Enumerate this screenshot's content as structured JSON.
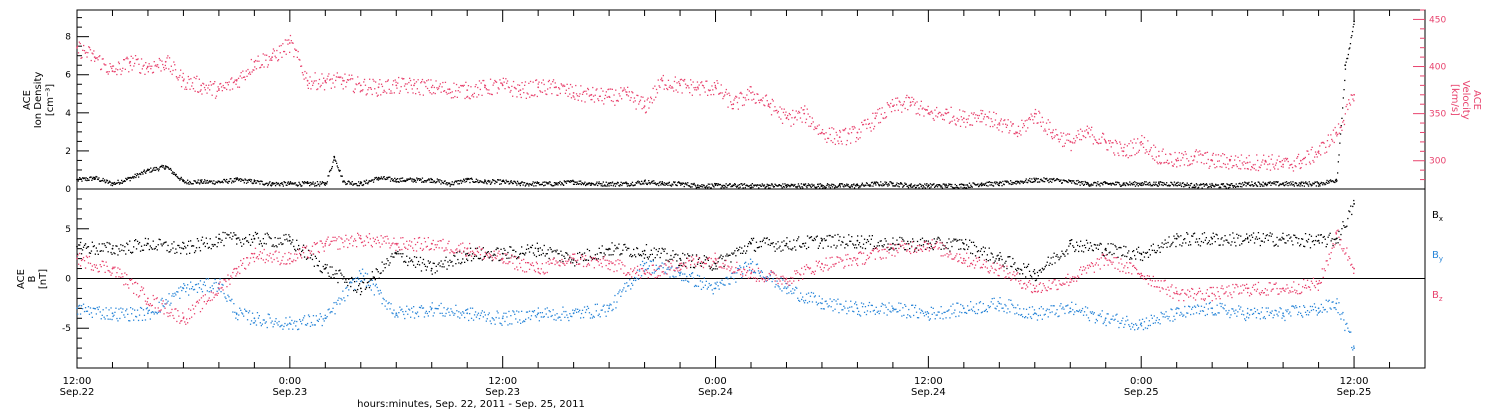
{
  "colors": {
    "black": "#000000",
    "pink": "#e8436e",
    "blue": "#2a86d8"
  },
  "x_axis": {
    "title": "hours:minutes, Sep. 22, 2011 - Sep. 25, 2011",
    "range_hours": [
      0,
      76
    ],
    "tick_times": [
      "12:00",
      "0:00",
      "12:00",
      "0:00",
      "12:00",
      "0:00",
      "12:00"
    ],
    "tick_dates": [
      "Sep.22",
      "Sep.23",
      "Sep.23",
      "Sep.24",
      "Sep.24",
      "Sep.25",
      "Sep.25"
    ],
    "tick_hours": [
      0,
      12,
      24,
      36,
      48,
      60,
      72
    ]
  },
  "chart_data": [
    {
      "type": "scatter",
      "panel": "top",
      "ylabel": "ACE Ion Density [cm^-3]",
      "ylabel_line1": "ACE",
      "ylabel_line2": "Ion Density",
      "ylabel_line3": "[cm⁻³]",
      "ylim": [
        0,
        9.4
      ],
      "yticks": [
        "0",
        "2",
        "4",
        "6",
        "8"
      ],
      "ytick_values": [
        0,
        2,
        4,
        6,
        8
      ],
      "right_axis": {
        "ylabel": "ACE Velocity [km/s]",
        "ylabel_line1": "ACE",
        "ylabel_line2": "Velocity",
        "ylabel_line3": "[km/s]",
        "ylim": [
          270,
          460
        ],
        "yticks": [
          "300",
          "350",
          "400",
          "450"
        ],
        "ytick_values": [
          300,
          350,
          400,
          450
        ]
      },
      "series": [
        {
          "axis": "left",
          "color": "#000000",
          "x": [
            0,
            1,
            2,
            3,
            4,
            5,
            6,
            7,
            8,
            9,
            10,
            11,
            12,
            13,
            14,
            14.5,
            15,
            16,
            17,
            18,
            19,
            20,
            21,
            22,
            23,
            24,
            25,
            26,
            27,
            28,
            29,
            30,
            31,
            32,
            33,
            34,
            35,
            36,
            37,
            38,
            39,
            40,
            41,
            42,
            43,
            44,
            45,
            46,
            47,
            48,
            49,
            50,
            51,
            52,
            53,
            54,
            55,
            56,
            57,
            58,
            59,
            60,
            61,
            62,
            63,
            64,
            65,
            66,
            67,
            68,
            69,
            70,
            71,
            71.5,
            72
          ],
          "values": [
            0.5,
            0.6,
            0.3,
            0.6,
            1.0,
            1.2,
            0.4,
            0.4,
            0.4,
            0.5,
            0.4,
            0.3,
            0.3,
            0.3,
            0.3,
            1.7,
            0.4,
            0.3,
            0.6,
            0.5,
            0.5,
            0.5,
            0.3,
            0.5,
            0.4,
            0.4,
            0.3,
            0.3,
            0.3,
            0.4,
            0.3,
            0.3,
            0.3,
            0.4,
            0.3,
            0.3,
            0.2,
            0.2,
            0.2,
            0.2,
            0.2,
            0.2,
            0.2,
            0.2,
            0.2,
            0.2,
            0.3,
            0.3,
            0.2,
            0.2,
            0.2,
            0.2,
            0.3,
            0.3,
            0.4,
            0.5,
            0.5,
            0.4,
            0.3,
            0.3,
            0.3,
            0.3,
            0.3,
            0.3,
            0.2,
            0.2,
            0.2,
            0.3,
            0.3,
            0.3,
            0.3,
            0.3,
            0.5,
            6.5,
            8.8
          ]
        },
        {
          "axis": "right",
          "color": "#e8436e",
          "x": [
            0,
            1,
            2,
            3,
            4,
            5,
            6,
            7,
            8,
            9,
            10,
            11,
            12,
            13,
            14,
            15,
            16,
            17,
            18,
            19,
            20,
            21,
            22,
            23,
            24,
            25,
            26,
            27,
            28,
            29,
            30,
            31,
            32,
            33,
            34,
            35,
            36,
            37,
            38,
            39,
            40,
            41,
            42,
            43,
            44,
            45,
            46,
            47,
            48,
            49,
            50,
            51,
            52,
            53,
            54,
            55,
            56,
            57,
            58,
            59,
            60,
            61,
            62,
            63,
            64,
            65,
            66,
            67,
            68,
            69,
            70,
            71,
            72
          ],
          "values": [
            420,
            410,
            395,
            405,
            400,
            405,
            385,
            380,
            375,
            385,
            405,
            410,
            425,
            385,
            385,
            385,
            380,
            378,
            380,
            380,
            378,
            376,
            375,
            378,
            380,
            375,
            378,
            378,
            372,
            370,
            368,
            370,
            358,
            385,
            380,
            378,
            378,
            360,
            372,
            360,
            345,
            350,
            330,
            325,
            330,
            345,
            358,
            362,
            350,
            350,
            345,
            350,
            340,
            330,
            350,
            330,
            320,
            330,
            320,
            310,
            320,
            305,
            300,
            305,
            300,
            300,
            298,
            300,
            296,
            300,
            310,
            330,
            370
          ]
        }
      ]
    },
    {
      "type": "scatter",
      "panel": "bottom",
      "ylabel": "ACE B [nT]",
      "ylabel_line1": "ACE",
      "ylabel_line2": "B",
      "ylabel_line3": "[nT]",
      "ylim": [
        -9,
        9
      ],
      "yticks": [
        "-5",
        "0",
        "5"
      ],
      "ytick_values": [
        -5,
        0,
        5
      ],
      "zero_line": true,
      "series": [
        {
          "name": "Bx",
          "color": "#000000",
          "x": [
            0,
            2,
            4,
            6,
            8,
            9,
            10,
            12,
            14,
            16,
            18,
            20,
            22,
            24,
            26,
            28,
            30,
            32,
            34,
            36,
            38,
            40,
            42,
            44,
            46,
            48,
            50,
            52,
            54,
            56,
            58,
            60,
            62,
            64,
            66,
            68,
            70,
            71,
            72
          ],
          "values": [
            3.2,
            3.0,
            3.5,
            3.0,
            4.0,
            4.0,
            4.0,
            3.8,
            1.0,
            -1.0,
            2.5,
            1.0,
            2.5,
            2.5,
            3.0,
            2.0,
            3.0,
            2.8,
            2.0,
            1.5,
            3.5,
            3.5,
            3.8,
            3.8,
            3.5,
            3.5,
            3.5,
            2.0,
            0.5,
            3.5,
            3.0,
            2.5,
            4.0,
            4.0,
            4.0,
            4.0,
            3.8,
            4.0,
            7.5
          ]
        },
        {
          "name": "By",
          "color": "#2a86d8",
          "x": [
            0,
            2,
            4,
            6,
            8,
            9,
            10,
            12,
            14,
            16,
            18,
            20,
            22,
            24,
            26,
            28,
            30,
            32,
            34,
            36,
            38,
            40,
            42,
            44,
            46,
            48,
            50,
            52,
            54,
            56,
            58,
            60,
            62,
            64,
            66,
            68,
            70,
            71,
            72
          ],
          "values": [
            -3.0,
            -3.5,
            -3.5,
            -1.0,
            -0.5,
            -3.5,
            -4.0,
            -4.5,
            -4.0,
            0.5,
            -3.5,
            -3.0,
            -3.5,
            -4.0,
            -3.5,
            -3.5,
            -3.0,
            1.5,
            0.5,
            -1.0,
            1.5,
            -1.0,
            -2.5,
            -3.0,
            -3.0,
            -3.5,
            -3.0,
            -2.5,
            -3.5,
            -3.0,
            -4.0,
            -4.5,
            -3.5,
            -3.0,
            -3.5,
            -3.5,
            -3.0,
            -2.5,
            -7.0
          ]
        },
        {
          "name": "Bz",
          "color": "#e8436e",
          "x": [
            0,
            2,
            4,
            6,
            8,
            9,
            10,
            12,
            14,
            16,
            18,
            20,
            22,
            24,
            26,
            28,
            30,
            32,
            34,
            36,
            38,
            40,
            42,
            44,
            46,
            48,
            50,
            52,
            54,
            56,
            58,
            60,
            62,
            64,
            66,
            68,
            70,
            71,
            72
          ],
          "values": [
            2.0,
            1.0,
            -2.0,
            -4.0,
            -1.0,
            1.0,
            2.5,
            2.0,
            3.5,
            4.0,
            3.5,
            3.5,
            3.0,
            2.0,
            1.0,
            2.0,
            1.5,
            0.5,
            1.5,
            2.0,
            0.5,
            0.0,
            1.5,
            2.0,
            3.0,
            3.5,
            2.0,
            1.0,
            -1.0,
            0.0,
            2.0,
            0.5,
            -1.5,
            -1.5,
            -1.0,
            -1.0,
            -0.5,
            4.5,
            1.0
          ]
        }
      ]
    }
  ],
  "legend": {
    "bx_base": "B",
    "bx_sub": "x",
    "by_base": "B",
    "by_sub": "y",
    "bz_base": "B",
    "bz_sub": "z"
  }
}
